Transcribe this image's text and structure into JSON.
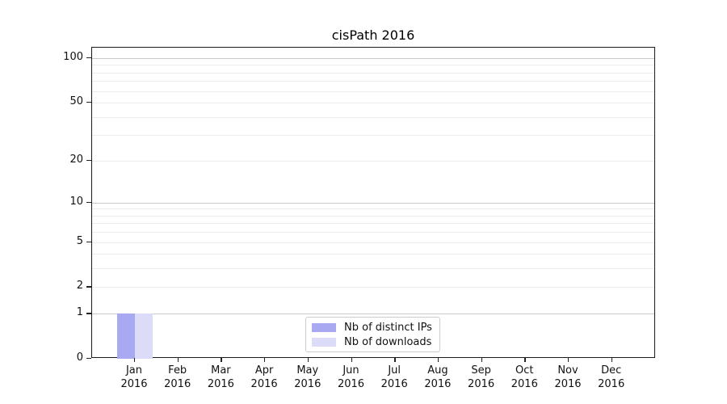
{
  "chart_data": {
    "type": "bar",
    "title": "cisPath 2016",
    "categories": [
      "Jan",
      "Feb",
      "Mar",
      "Apr",
      "May",
      "Jun",
      "Jul",
      "Aug",
      "Sep",
      "Oct",
      "Nov",
      "Dec"
    ],
    "year_label": "2016",
    "series": [
      {
        "name": "Nb of distinct IPs",
        "color": "#a9a9f2",
        "values": [
          1,
          0,
          0,
          0,
          0,
          0,
          0,
          0,
          0,
          0,
          0,
          0
        ]
      },
      {
        "name": "Nb of downloads",
        "color": "#dcdcf8",
        "values": [
          1,
          0,
          0,
          0,
          0,
          0,
          0,
          0,
          0,
          0,
          0,
          0
        ]
      }
    ],
    "y_axis": {
      "scale": "log1p",
      "ticks": [
        100,
        50,
        20,
        10,
        5,
        2,
        1,
        0
      ],
      "grid_major": [
        1,
        10,
        100
      ],
      "grid_minor": [
        2,
        3,
        4,
        5,
        6,
        7,
        8,
        9,
        20,
        30,
        40,
        50,
        60,
        70,
        80,
        90
      ],
      "ylim": [
        0,
        115
      ]
    },
    "x_axis": {
      "tick_count": 12
    },
    "legend": {
      "position": "bottom-center",
      "entries": [
        "Nb of distinct IPs",
        "Nb of downloads"
      ]
    },
    "grid": true,
    "colors": {
      "grid_major": "#c9c9c9",
      "grid_minor": "#ececec",
      "spine": "#1a1a1a",
      "legend_border": "#cccccc"
    }
  }
}
